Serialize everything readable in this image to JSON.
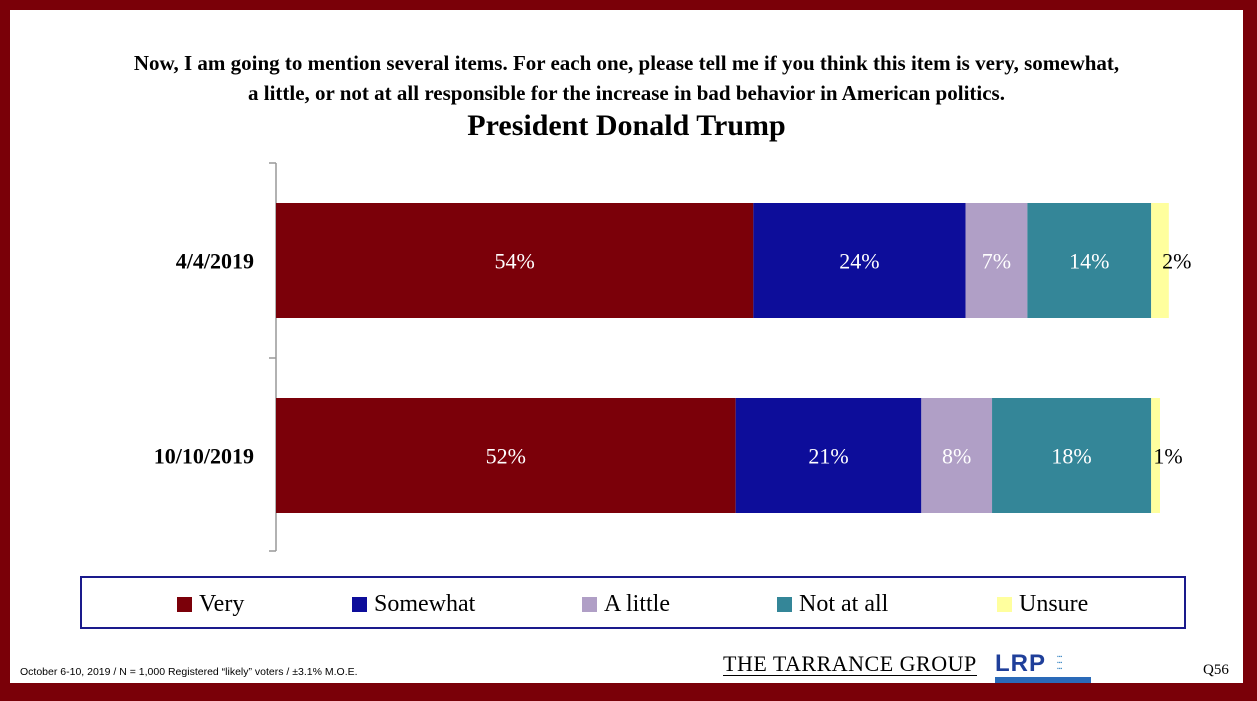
{
  "question": {
    "line1": "Now, I am going to mention several items.  For each one, please tell me if you think this item is very, somewhat,",
    "line2": "a little, or not at all responsible for the increase in bad behavior in American politics."
  },
  "chart_data": {
    "type": "bar",
    "orientation": "horizontal",
    "stacked": true,
    "title": "President Donald Trump",
    "categories": [
      "4/4/2019",
      "10/10/2019"
    ],
    "series": [
      {
        "name": "Very",
        "color": "#7b0009",
        "values": [
          54,
          52
        ],
        "labels": [
          "54%",
          "52%"
        ],
        "label_color": "#ffffff"
      },
      {
        "name": "Somewhat",
        "color": "#0d0d9a",
        "values": [
          24,
          21
        ],
        "labels": [
          "24%",
          "21%"
        ],
        "label_color": "#ffffff"
      },
      {
        "name": "A little",
        "color": "#b09fc6",
        "values": [
          7,
          8
        ],
        "labels": [
          "7%",
          "8%"
        ],
        "label_color": "#ffffff"
      },
      {
        "name": "Not at all",
        "color": "#348698",
        "values": [
          14,
          18
        ],
        "labels": [
          "14%",
          "18%"
        ],
        "label_color": "#ffffff"
      },
      {
        "name": "Unsure",
        "color": "#ffff9e",
        "values": [
          2,
          1
        ],
        "labels": [
          "2%",
          "1%"
        ],
        "label_color": "#000000"
      }
    ],
    "legend_position": "bottom",
    "grid": false
  },
  "footer": {
    "note": "October 6-10, 2019 / N = 1,000 Registered “likely” voters / ±3.1% M.O.E.",
    "logo_tarrance": "THE TARRANCE GROUP",
    "logo_lrp": "LRP",
    "question_number": "Q56"
  }
}
